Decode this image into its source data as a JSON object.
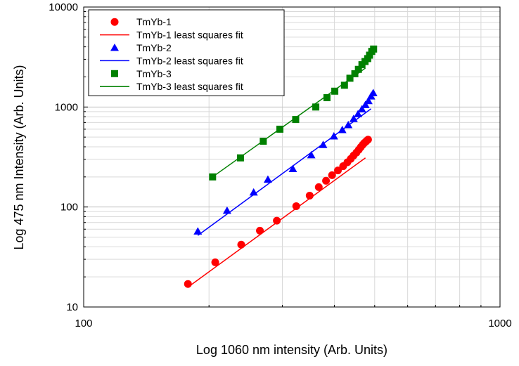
{
  "chart_data": {
    "type": "scatter",
    "xscale": "log",
    "yscale": "log",
    "xlim": [
      100,
      1000
    ],
    "ylim": [
      10,
      10000
    ],
    "xlabel": "Log 1060 nm intensity (Arb. Units)",
    "ylabel": "Log 475 nm Intensity (Arb. Units)",
    "x_ticks": [
      100,
      1000
    ],
    "x_tick_labels": [
      "100",
      "1000"
    ],
    "y_ticks": [
      10,
      100,
      1000,
      10000
    ],
    "y_tick_labels": [
      "10",
      "100",
      "1000",
      "10000"
    ],
    "grid": true,
    "legend_position": "top-left",
    "series": [
      {
        "name": "TmYb-1",
        "marker": "circle",
        "color": "#ff0000",
        "x": [
          178,
          207,
          239,
          265,
          291,
          324,
          349,
          367,
          382,
          395,
          408,
          420,
          430,
          438,
          445,
          452,
          458,
          463,
          468,
          472,
          476,
          479,
          482
        ],
        "y": [
          17,
          28,
          42,
          58,
          73,
          102,
          130,
          158,
          183,
          208,
          232,
          256,
          280,
          303,
          327,
          350,
          374,
          397,
          420,
          437,
          450,
          462,
          472
        ]
      },
      {
        "name": "TmYb-1 least squares fit",
        "line": true,
        "color": "#ff0000",
        "x": [
          178,
          475
        ],
        "y": [
          15.8,
          310
        ]
      },
      {
        "name": "TmYb-2",
        "marker": "triangle",
        "color": "#0000ff",
        "x": [
          188,
          221,
          256,
          277,
          318,
          352,
          376,
          399,
          418,
          432,
          445,
          456,
          466,
          475,
          483,
          490,
          496
        ],
        "y": [
          57,
          92,
          140,
          188,
          240,
          330,
          418,
          510,
          590,
          660,
          760,
          850,
          950,
          1050,
          1150,
          1280,
          1380
        ]
      },
      {
        "name": "TmYb-2 least squares fit",
        "line": true,
        "color": "#0000ff",
        "x": [
          188,
          490
        ],
        "y": [
          52,
          960
        ]
      },
      {
        "name": "TmYb-3",
        "marker": "square",
        "color": "#008000",
        "x": [
          204,
          238,
          270,
          296,
          323,
          361,
          384,
          401,
          423,
          436,
          448,
          457,
          466,
          474,
          481,
          486,
          492,
          497
        ],
        "y": [
          200,
          310,
          455,
          600,
          750,
          1000,
          1240,
          1440,
          1650,
          1940,
          2150,
          2380,
          2650,
          2850,
          3050,
          3300,
          3600,
          3800
        ]
      },
      {
        "name": "TmYb-3 least squares fit",
        "line": true,
        "color": "#008000",
        "x": [
          204,
          475
        ],
        "y": [
          200,
          2450
        ]
      }
    ]
  }
}
